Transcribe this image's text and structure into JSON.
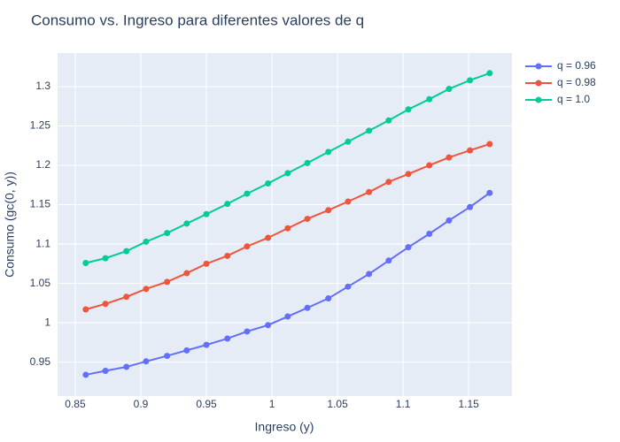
{
  "chart_data": {
    "type": "line",
    "title": "Consumo vs. Ingreso para diferentes valores de q",
    "x_label": "Ingreso (y)",
    "y_label": "Consumo (gc(0, y))",
    "x": [
      0.858,
      0.873,
      0.889,
      0.904,
      0.92,
      0.935,
      0.95,
      0.966,
      0.981,
      0.997,
      1.012,
      1.027,
      1.043,
      1.058,
      1.074,
      1.089,
      1.104,
      1.12,
      1.135,
      1.151,
      1.166
    ],
    "series": [
      {
        "name": "q = 0.96",
        "color": "#636efa",
        "values": [
          0.934,
          0.939,
          0.944,
          0.951,
          0.958,
          0.965,
          0.972,
          0.98,
          0.989,
          0.997,
          1.008,
          1.019,
          1.031,
          1.046,
          1.062,
          1.079,
          1.096,
          1.113,
          1.13,
          1.147,
          1.165
        ]
      },
      {
        "name": "q = 0.98",
        "color": "#ef553b",
        "values": [
          1.017,
          1.024,
          1.033,
          1.043,
          1.052,
          1.063,
          1.075,
          1.085,
          1.097,
          1.108,
          1.12,
          1.132,
          1.143,
          1.154,
          1.166,
          1.179,
          1.189,
          1.2,
          1.21,
          1.219,
          1.227
        ]
      },
      {
        "name": "q = 1.0",
        "color": "#00cc96",
        "values": [
          1.076,
          1.082,
          1.091,
          1.103,
          1.114,
          1.126,
          1.138,
          1.151,
          1.164,
          1.177,
          1.19,
          1.203,
          1.217,
          1.23,
          1.244,
          1.257,
          1.271,
          1.284,
          1.297,
          1.308,
          1.317
        ]
      }
    ],
    "xlim": [
      0.8365,
      1.183
    ],
    "ylim": [
      0.907,
      1.3426
    ],
    "xticks": [
      0.85,
      0.9,
      0.95,
      1,
      1.05,
      1.1,
      1.15
    ],
    "yticks": [
      0.95,
      1,
      1.05,
      1.1,
      1.15,
      1.2,
      1.25,
      1.3
    ],
    "grid": true,
    "legend": "top-right"
  }
}
